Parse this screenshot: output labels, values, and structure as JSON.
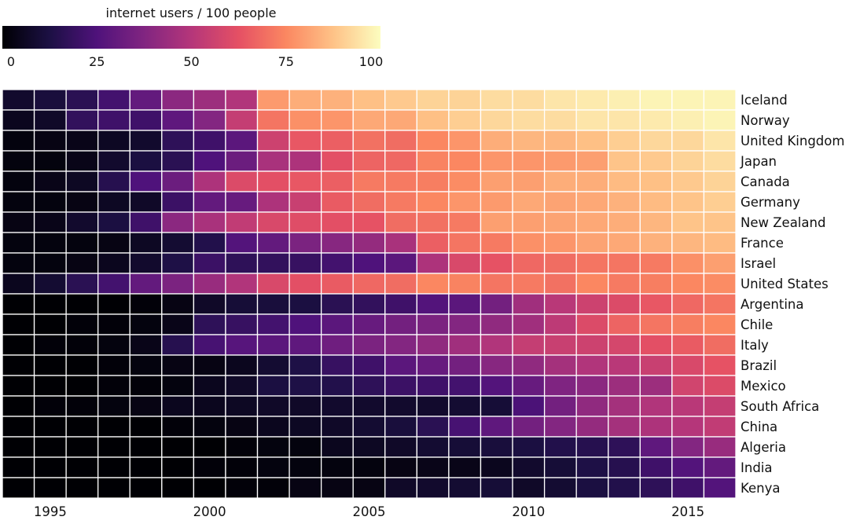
{
  "colorbar": {
    "title": "internet users / 100 people",
    "ticks": [
      "0",
      "25",
      "50",
      "75",
      "100"
    ],
    "range": [
      0,
      100
    ],
    "palette": [
      "#000004",
      "#1c1044",
      "#4f127b",
      "#812581",
      "#b5367a",
      "#e55064",
      "#fb8761",
      "#fec287",
      "#fcfdbf"
    ]
  },
  "chart_data": {
    "type": "heatmap",
    "title": "",
    "xlabel": "",
    "ylabel": "",
    "colorbar_label": "internet users / 100 people",
    "x_ticks": [
      "1995",
      "2000",
      "2005",
      "2010",
      "2015"
    ],
    "years": [
      1994,
      1995,
      1996,
      1997,
      1998,
      1999,
      2000,
      2001,
      2002,
      2003,
      2004,
      2005,
      2006,
      2007,
      2008,
      2009,
      2010,
      2011,
      2012,
      2013,
      2014,
      2015,
      2016
    ],
    "countries": [
      "Iceland",
      "Norway",
      "United Kingdom",
      "Japan",
      "Canada",
      "Germany",
      "New Zealand",
      "France",
      "Israel",
      "United States",
      "Argentina",
      "Chile",
      "Italy",
      "Brazil",
      "Mexico",
      "South Africa",
      "China",
      "Algeria",
      "India",
      "Kenya"
    ],
    "values": [
      [
        8,
        11,
        16,
        22,
        30,
        40,
        44,
        49,
        79,
        83,
        84,
        87,
        89,
        91,
        91,
        93,
        93,
        95,
        96,
        97,
        98,
        98,
        98
      ],
      [
        5,
        7,
        18,
        21,
        21,
        29,
        38,
        54,
        71,
        77,
        78,
        82,
        82,
        87,
        90,
        92,
        93,
        93,
        95,
        95,
        96,
        97,
        98
      ],
      [
        2,
        3,
        4,
        6,
        8,
        17,
        21,
        28,
        56,
        64,
        66,
        70,
        69,
        75,
        78,
        83,
        85,
        85,
        87,
        90,
        92,
        92,
        95
      ],
      [
        2,
        2,
        4,
        8,
        12,
        16,
        25,
        32,
        47,
        48,
        62,
        67,
        68,
        74,
        75,
        78,
        78,
        79,
        80,
        88,
        89,
        91,
        93
      ],
      [
        2,
        4,
        6,
        15,
        25,
        32,
        48,
        60,
        62,
        64,
        66,
        72,
        72,
        73,
        76,
        80,
        80,
        83,
        83,
        86,
        87,
        89,
        91
      ],
      [
        2,
        2,
        3,
        6,
        7,
        20,
        30,
        31,
        48,
        55,
        65,
        69,
        72,
        75,
        78,
        79,
        82,
        81,
        82,
        84,
        86,
        88,
        90
      ],
      [
        3,
        4,
        8,
        12,
        21,
        40,
        47,
        53,
        59,
        61,
        62,
        63,
        69,
        70,
        72,
        80,
        80,
        81,
        82,
        83,
        85,
        88,
        88
      ],
      [
        2,
        2,
        2,
        3,
        6,
        9,
        14,
        26,
        30,
        36,
        39,
        42,
        47,
        66,
        71,
        72,
        77,
        78,
        81,
        82,
        84,
        85,
        86
      ],
      [
        2,
        2,
        3,
        5,
        8,
        13,
        20,
        17,
        18,
        19,
        22,
        25,
        28,
        48,
        59,
        63,
        68,
        69,
        71,
        71,
        72,
        77,
        80
      ],
      [
        5,
        9,
        16,
        22,
        30,
        36,
        43,
        49,
        59,
        62,
        65,
        68,
        69,
        75,
        74,
        71,
        72,
        70,
        75,
        72,
        73,
        75,
        76
      ],
      [
        0,
        0,
        0,
        0,
        1,
        3,
        7,
        10,
        11,
        12,
        16,
        18,
        21,
        26,
        28,
        34,
        45,
        51,
        56,
        60,
        64,
        68,
        71
      ],
      [
        0,
        0,
        1,
        1,
        2,
        4,
        17,
        19,
        22,
        25,
        28,
        31,
        34,
        36,
        38,
        41,
        45,
        52,
        60,
        67,
        71,
        73,
        75
      ],
      [
        0,
        1,
        1,
        2,
        4,
        15,
        23,
        27,
        28,
        29,
        33,
        36,
        38,
        41,
        45,
        49,
        54,
        55,
        56,
        58,
        62,
        65,
        69
      ],
      [
        0,
        0,
        0,
        1,
        2,
        3,
        3,
        5,
        9,
        13,
        19,
        21,
        28,
        31,
        34,
        39,
        41,
        46,
        49,
        51,
        55,
        59,
        63
      ],
      [
        0,
        0,
        0,
        1,
        1,
        2,
        5,
        7,
        12,
        13,
        14,
        17,
        20,
        21,
        22,
        26,
        31,
        37,
        40,
        44,
        44,
        57,
        60
      ],
      [
        0,
        1,
        1,
        2,
        3,
        5,
        5,
        6,
        7,
        7,
        8,
        8,
        8,
        8,
        9,
        10,
        24,
        34,
        41,
        46,
        49,
        51,
        54
      ],
      [
        0,
        0,
        0,
        0,
        0,
        1,
        2,
        3,
        5,
        6,
        7,
        9,
        11,
        16,
        23,
        29,
        34,
        38,
        42,
        46,
        48,
        50,
        53
      ],
      [
        0,
        0,
        0,
        0,
        0,
        0,
        0,
        1,
        2,
        2,
        5,
        6,
        7,
        9,
        10,
        11,
        12,
        14,
        15,
        17,
        29,
        38,
        43
      ],
      [
        0,
        0,
        0,
        0,
        0,
        0,
        1,
        1,
        2,
        2,
        2,
        2,
        3,
        4,
        4,
        5,
        8,
        10,
        13,
        15,
        21,
        26,
        30
      ],
      [
        0,
        0,
        0,
        0,
        0,
        0,
        0,
        1,
        1,
        3,
        3,
        3,
        7,
        8,
        9,
        10,
        7,
        9,
        12,
        14,
        17,
        21,
        26
      ]
    ],
    "range": [
      0,
      100
    ],
    "grid": true,
    "legend_position": "top-left"
  }
}
